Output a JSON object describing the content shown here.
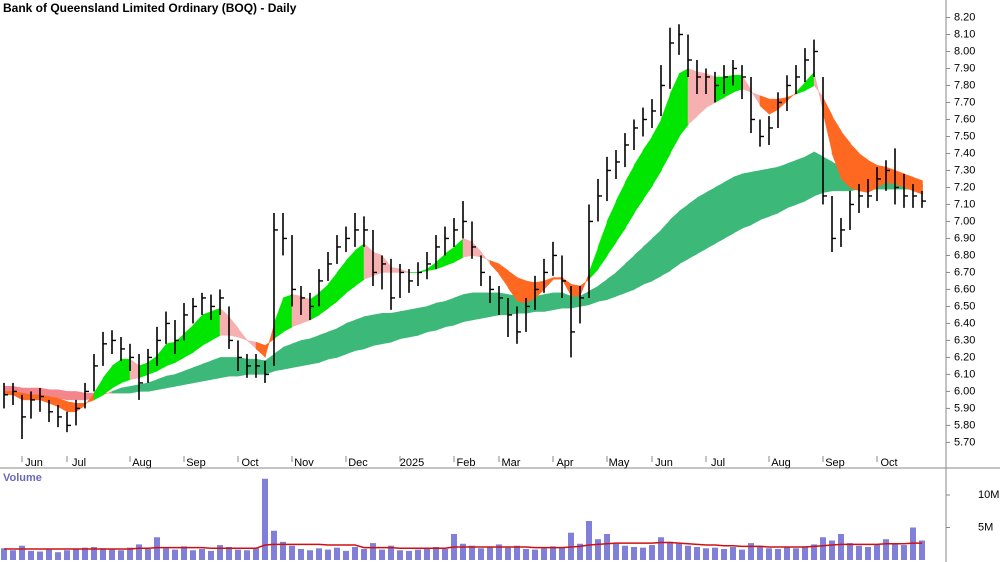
{
  "chart_data": {
    "type": "stock",
    "title": "Bank of Queensland Limited Ordinary (BOQ) - Daily",
    "categories": [
      null,
      null,
      "Jun",
      null,
      null,
      null,
      null,
      "Jul",
      null,
      null,
      null,
      null,
      null,
      null,
      "Aug",
      null,
      null,
      null,
      null,
      null,
      "Sep",
      null,
      null,
      null,
      null,
      null,
      "Oct",
      null,
      null,
      null,
      null,
      null,
      "Nov",
      null,
      null,
      null,
      null,
      null,
      "Dec",
      null,
      null,
      null,
      null,
      null,
      "2025",
      null,
      null,
      null,
      null,
      null,
      "Feb",
      null,
      null,
      null,
      null,
      "Mar",
      null,
      null,
      null,
      null,
      null,
      "Apr",
      null,
      null,
      null,
      null,
      null,
      "May",
      null,
      null,
      null,
      null,
      "Jun",
      null,
      null,
      null,
      null,
      null,
      "Jul",
      null,
      null,
      null,
      null,
      null,
      null,
      "Aug",
      null,
      null,
      null,
      null,
      null,
      "Sep",
      null,
      null,
      null,
      null,
      null,
      "Oct",
      null,
      null,
      null,
      null,
      null
    ],
    "high": [
      6.05,
      6.05,
      5.98,
      6.0,
      6.02,
      5.95,
      5.92,
      5.88,
      5.95,
      6.05,
      6.22,
      6.35,
      6.36,
      6.32,
      6.28,
      6.22,
      6.25,
      6.38,
      6.47,
      6.42,
      6.52,
      6.55,
      6.58,
      6.57,
      6.6,
      6.5,
      6.3,
      6.22,
      6.22,
      6.18,
      7.05,
      7.05,
      6.92,
      6.62,
      6.58,
      6.72,
      6.82,
      6.92,
      6.97,
      7.05,
      7.03,
      6.95,
      6.8,
      6.78,
      6.75,
      6.72,
      6.76,
      6.82,
      6.92,
      6.97,
      7.02,
      7.12,
      7.0,
      6.8,
      6.68,
      6.62,
      6.55,
      6.5,
      6.55,
      6.68,
      6.78,
      6.88,
      6.8,
      6.62,
      6.62,
      7.1,
      7.25,
      7.38,
      7.42,
      7.52,
      7.6,
      7.67,
      7.72,
      7.92,
      8.14,
      8.16,
      8.1,
      7.95,
      7.9,
      7.88,
      7.92,
      7.95,
      7.92,
      7.85,
      7.6,
      7.62,
      7.76,
      7.86,
      7.92,
      8.02,
      8.07,
      7.85,
      7.15,
      7.02,
      7.18,
      7.22,
      7.25,
      7.32,
      7.36,
      7.43,
      7.28,
      7.22,
      7.18
    ],
    "low": [
      5.9,
      5.92,
      5.72,
      5.84,
      5.88,
      5.82,
      5.79,
      5.76,
      5.8,
      5.9,
      6.0,
      6.15,
      6.22,
      6.18,
      6.12,
      5.95,
      6.05,
      6.15,
      6.28,
      6.22,
      6.3,
      6.4,
      6.45,
      6.42,
      6.45,
      6.25,
      6.12,
      6.08,
      6.08,
      6.05,
      6.15,
      6.8,
      6.5,
      6.45,
      6.42,
      6.5,
      6.65,
      6.75,
      6.82,
      6.85,
      6.85,
      6.62,
      6.6,
      6.48,
      6.55,
      6.58,
      6.62,
      6.66,
      6.72,
      6.8,
      6.85,
      6.9,
      6.78,
      6.62,
      6.52,
      6.45,
      6.32,
      6.28,
      6.35,
      6.48,
      6.58,
      6.68,
      6.55,
      6.2,
      6.4,
      6.55,
      7.0,
      7.12,
      7.25,
      7.32,
      7.42,
      7.5,
      7.55,
      7.62,
      7.78,
      7.98,
      7.85,
      7.75,
      7.75,
      7.7,
      7.75,
      7.8,
      7.72,
      7.52,
      7.44,
      7.45,
      7.55,
      7.65,
      7.75,
      7.82,
      7.85,
      7.1,
      6.82,
      6.85,
      6.95,
      7.05,
      7.08,
      7.12,
      7.18,
      7.1,
      7.08,
      7.08,
      7.08
    ],
    "close": [
      5.98,
      6.0,
      5.85,
      5.95,
      5.97,
      5.88,
      5.85,
      5.8,
      5.9,
      6.0,
      6.15,
      6.28,
      6.3,
      6.25,
      6.2,
      6.05,
      6.2,
      6.3,
      6.4,
      6.3,
      6.45,
      6.5,
      6.55,
      6.5,
      6.55,
      6.3,
      6.2,
      6.15,
      6.15,
      6.1,
      6.95,
      6.9,
      6.6,
      6.55,
      6.5,
      6.65,
      6.75,
      6.85,
      6.9,
      6.95,
      6.95,
      6.7,
      6.75,
      6.55,
      6.7,
      6.65,
      6.7,
      6.75,
      6.85,
      6.9,
      6.95,
      7.0,
      6.85,
      6.7,
      6.6,
      6.55,
      6.45,
      6.35,
      6.5,
      6.6,
      6.7,
      6.8,
      6.65,
      6.35,
      6.55,
      7.0,
      7.15,
      7.3,
      7.35,
      7.45,
      7.55,
      7.6,
      7.65,
      7.8,
      8.05,
      8.1,
      7.95,
      7.85,
      7.85,
      7.8,
      7.85,
      7.9,
      7.85,
      7.6,
      7.5,
      7.55,
      7.7,
      7.8,
      7.85,
      7.95,
      8.0,
      7.15,
      6.9,
      6.95,
      7.1,
      7.15,
      7.15,
      7.25,
      7.3,
      7.2,
      7.15,
      7.15,
      7.12
    ],
    "color": "#000000",
    "ylim": [
      5.62,
      8.25
    ],
    "yticks": [
      {
        "value": 5.7,
        "label": "5.70"
      },
      {
        "value": 5.8,
        "label": "5.80"
      },
      {
        "value": 5.9,
        "label": "5.90"
      },
      {
        "value": 6.0,
        "label": "6.00"
      },
      {
        "value": 6.1,
        "label": "6.10"
      },
      {
        "value": 6.2,
        "label": "6.20"
      },
      {
        "value": 6.3,
        "label": "6.30"
      },
      {
        "value": 6.4,
        "label": "6.40"
      },
      {
        "value": 6.5,
        "label": "6.50"
      },
      {
        "value": 6.6,
        "label": "6.60"
      },
      {
        "value": 6.7,
        "label": "6.70"
      },
      {
        "value": 6.8,
        "label": "6.80"
      },
      {
        "value": 6.9,
        "label": "6.90"
      },
      {
        "value": 7.0,
        "label": "7.00"
      },
      {
        "value": 7.1,
        "label": "7.10"
      },
      {
        "value": 7.2,
        "label": "7.20"
      },
      {
        "value": 7.3,
        "label": "7.30"
      },
      {
        "value": 7.4,
        "label": "7.40"
      },
      {
        "value": 7.5,
        "label": "7.50"
      },
      {
        "value": 7.6,
        "label": "7.60"
      },
      {
        "value": 7.7,
        "label": "7.70"
      },
      {
        "value": 7.8,
        "label": "7.80"
      },
      {
        "value": 7.9,
        "label": "7.90"
      },
      {
        "value": 8.0,
        "label": "8.00"
      },
      {
        "value": 8.1,
        "label": "8.10"
      },
      {
        "value": 8.2,
        "label": "8.20"
      }
    ],
    "ribbons": [
      {
        "fast": [
          6.0,
          6.0,
          5.99,
          5.98,
          5.98,
          5.97,
          5.96,
          5.95,
          5.95,
          5.95,
          5.96,
          5.98,
          6.0,
          6.02,
          6.03,
          6.04,
          6.05,
          6.07,
          6.09,
          6.1,
          6.12,
          6.14,
          6.16,
          6.18,
          6.2,
          6.2,
          6.2,
          6.19,
          6.19,
          6.18,
          6.22,
          6.26,
          6.28,
          6.3,
          6.31,
          6.33,
          6.35,
          6.37,
          6.4,
          6.42,
          6.44,
          6.45,
          6.46,
          6.46,
          6.47,
          6.48,
          6.49,
          6.5,
          6.52,
          6.53,
          6.55,
          6.57,
          6.58,
          6.58,
          6.58,
          6.58,
          6.57,
          6.56,
          6.56,
          6.56,
          6.57,
          6.58,
          6.58,
          6.56,
          6.56,
          6.59,
          6.62,
          6.66,
          6.7,
          6.75,
          6.8,
          6.85,
          6.9,
          6.95,
          7.01,
          7.06,
          7.1,
          7.14,
          7.17,
          7.2,
          7.23,
          7.26,
          7.28,
          7.29,
          7.3,
          7.31,
          7.32,
          7.34,
          7.36,
          7.38,
          7.41,
          7.38,
          7.35,
          7.32,
          7.3,
          7.28,
          7.27,
          7.26,
          7.26,
          7.25,
          7.24,
          7.23,
          7.22
        ],
        "slow": [
          6.03,
          6.03,
          6.02,
          6.02,
          6.02,
          6.01,
          6.01,
          6.0,
          6.0,
          5.99,
          5.99,
          5.99,
          5.99,
          5.99,
          5.99,
          6.0,
          6.0,
          6.01,
          6.02,
          6.03,
          6.04,
          6.05,
          6.06,
          6.07,
          6.08,
          6.09,
          6.09,
          6.1,
          6.1,
          6.1,
          6.12,
          6.13,
          6.14,
          6.15,
          6.16,
          6.17,
          6.19,
          6.2,
          6.22,
          6.24,
          6.25,
          6.27,
          6.28,
          6.29,
          6.31,
          6.32,
          6.33,
          6.35,
          6.36,
          6.38,
          6.39,
          6.41,
          6.42,
          6.43,
          6.44,
          6.45,
          6.45,
          6.46,
          6.46,
          6.47,
          6.47,
          6.48,
          6.49,
          6.49,
          6.5,
          6.51,
          6.53,
          6.54,
          6.56,
          6.58,
          6.6,
          6.63,
          6.65,
          6.68,
          6.71,
          6.75,
          6.78,
          6.81,
          6.84,
          6.87,
          6.9,
          6.93,
          6.96,
          6.98,
          7.01,
          7.03,
          7.05,
          7.08,
          7.1,
          7.12,
          7.15,
          7.17,
          7.18,
          7.18,
          7.18,
          7.19,
          7.19,
          7.19,
          7.19,
          7.19,
          7.19,
          7.19,
          7.19
        ],
        "colors": {
          "up": "#3cb878",
          "down": "#f4858a"
        }
      },
      {
        "fast": [
          5.98,
          5.98,
          5.95,
          5.95,
          5.95,
          5.93,
          5.91,
          5.88,
          5.88,
          5.92,
          5.99,
          6.08,
          6.15,
          6.19,
          6.19,
          6.15,
          6.17,
          6.21,
          6.28,
          6.29,
          6.34,
          6.39,
          6.45,
          6.47,
          6.49,
          6.44,
          6.37,
          6.3,
          6.25,
          6.2,
          6.4,
          6.55,
          6.57,
          6.56,
          6.54,
          6.58,
          6.63,
          6.7,
          6.77,
          6.83,
          6.87,
          6.82,
          6.8,
          6.73,
          6.72,
          6.7,
          6.7,
          6.72,
          6.76,
          6.81,
          6.85,
          6.9,
          6.88,
          6.82,
          6.75,
          6.69,
          6.61,
          6.53,
          6.52,
          6.55,
          6.6,
          6.66,
          6.66,
          6.56,
          6.56,
          6.7,
          6.85,
          7.0,
          7.12,
          7.23,
          7.33,
          7.42,
          7.5,
          7.6,
          7.75,
          7.87,
          7.9,
          7.88,
          7.87,
          7.85,
          7.85,
          7.86,
          7.86,
          7.77,
          7.68,
          7.63,
          7.66,
          7.71,
          7.76,
          7.82,
          7.88,
          7.64,
          7.4,
          7.25,
          7.2,
          7.18,
          7.17,
          7.2,
          7.23,
          7.22,
          7.2,
          7.18,
          7.16
        ],
        "slow": [
          6.0,
          6.0,
          5.99,
          5.98,
          5.98,
          5.97,
          5.96,
          5.94,
          5.93,
          5.93,
          5.95,
          5.98,
          6.02,
          6.05,
          6.07,
          6.08,
          6.1,
          6.12,
          6.15,
          6.17,
          6.2,
          6.23,
          6.27,
          6.3,
          6.33,
          6.33,
          6.32,
          6.3,
          6.29,
          6.27,
          6.31,
          6.35,
          6.38,
          6.4,
          6.42,
          6.45,
          6.49,
          6.53,
          6.58,
          6.62,
          6.66,
          6.68,
          6.7,
          6.7,
          6.7,
          6.7,
          6.7,
          6.71,
          6.72,
          6.74,
          6.76,
          6.79,
          6.8,
          6.79,
          6.77,
          6.75,
          6.71,
          6.67,
          6.65,
          6.64,
          6.65,
          6.67,
          6.67,
          6.63,
          6.62,
          6.66,
          6.72,
          6.8,
          6.88,
          6.96,
          7.05,
          7.13,
          7.21,
          7.3,
          7.4,
          7.5,
          7.57,
          7.62,
          7.67,
          7.7,
          7.73,
          7.76,
          7.78,
          7.76,
          7.74,
          7.72,
          7.72,
          7.73,
          7.75,
          7.77,
          7.8,
          7.73,
          7.62,
          7.53,
          7.46,
          7.4,
          7.36,
          7.33,
          7.32,
          7.3,
          7.28,
          7.26,
          7.24
        ],
        "colors": {
          "up": "#00e600",
          "fading": "#f7b0b0",
          "down": "#ff6820"
        }
      }
    ],
    "volume": {
      "label": "Volume",
      "values": [
        1.8,
        1.5,
        2.2,
        1.4,
        1.3,
        1.6,
        1.2,
        1.5,
        1.7,
        1.9,
        2.0,
        1.8,
        1.6,
        1.5,
        1.9,
        2.4,
        1.7,
        3.5,
        1.8,
        1.6,
        2.1,
        1.5,
        1.7,
        1.4,
        2.3,
        2.0,
        1.6,
        1.5,
        1.8,
        12.5,
        4.5,
        2.8,
        2.2,
        1.7,
        1.5,
        1.8,
        1.6,
        1.9,
        1.4,
        2.0,
        1.7,
        2.6,
        1.6,
        2.2,
        1.5,
        1.4,
        1.6,
        1.8,
        2.0,
        1.7,
        4.0,
        2.5,
        2.2,
        1.8,
        2.0,
        2.4,
        1.9,
        2.2,
        1.7,
        1.6,
        1.8,
        2.1,
        1.9,
        4.2,
        2.5,
        6.0,
        3.2,
        4.0,
        2.5,
        2.2,
        2.0,
        1.9,
        2.3,
        3.5,
        2.8,
        2.5,
        2.2,
        2.0,
        1.8,
        1.9,
        1.7,
        2.0,
        1.6,
        2.6,
        2.2,
        1.8,
        1.7,
        2.0,
        1.8,
        2.1,
        2.4,
        3.5,
        3.0,
        4.0,
        2.6,
        2.2,
        2.0,
        2.4,
        3.2,
        2.5,
        2.3,
        5.0,
        3.0
      ],
      "average": [
        1.7,
        1.7,
        1.7,
        1.7,
        1.7,
        1.7,
        1.7,
        1.7,
        1.7,
        1.7,
        1.7,
        1.7,
        1.7,
        1.7,
        1.7,
        1.8,
        1.8,
        1.9,
        1.9,
        1.9,
        1.9,
        1.9,
        1.9,
        1.8,
        1.8,
        1.8,
        1.8,
        1.8,
        1.8,
        2.3,
        2.4,
        2.4,
        2.4,
        2.4,
        2.4,
        2.4,
        2.3,
        2.3,
        2.3,
        2.3,
        1.9,
        1.9,
        1.9,
        1.9,
        1.8,
        1.8,
        1.8,
        1.8,
        1.8,
        1.8,
        2.0,
        2.0,
        2.0,
        2.0,
        2.0,
        2.0,
        2.0,
        2.0,
        2.0,
        1.9,
        1.9,
        1.9,
        1.9,
        2.0,
        2.1,
        2.3,
        2.4,
        2.5,
        2.6,
        2.6,
        2.6,
        2.6,
        2.6,
        2.7,
        2.7,
        2.6,
        2.5,
        2.4,
        2.3,
        2.3,
        2.2,
        2.2,
        2.1,
        2.1,
        2.1,
        2.0,
        2.0,
        2.0,
        2.0,
        2.0,
        2.1,
        2.2,
        2.3,
        2.4,
        2.4,
        2.4,
        2.4,
        2.4,
        2.5,
        2.5,
        2.5,
        2.6,
        2.6
      ],
      "color": "#8080d8",
      "average_color": "#d01010",
      "ylim": [
        0,
        14
      ],
      "yticks": [
        {
          "value": 5,
          "label": "5M"
        },
        {
          "value": 10,
          "label": "10M"
        }
      ]
    }
  }
}
